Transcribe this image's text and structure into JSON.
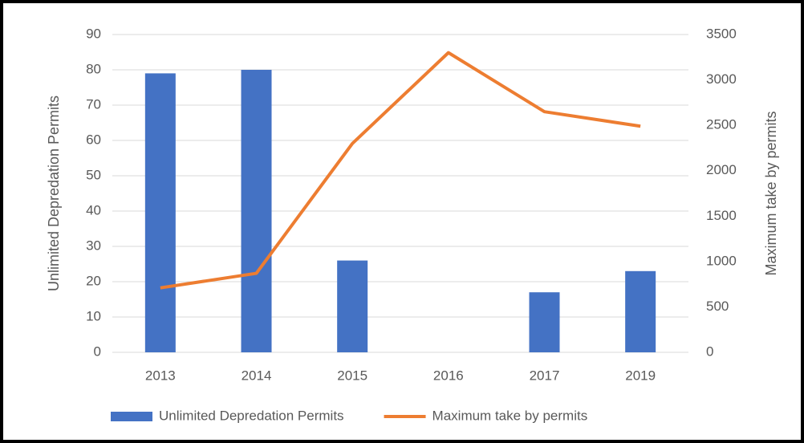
{
  "chart_data": {
    "type": "combo",
    "categories": [
      "2013",
      "2014",
      "2015",
      "2016",
      "2017",
      "2019"
    ],
    "series": [
      {
        "name": "Unlimited Depredation Permits",
        "type": "bar",
        "color": "#4472c4",
        "values": [
          79,
          80,
          26,
          0,
          17,
          23
        ]
      },
      {
        "name": "Maximum take by permits",
        "type": "line",
        "axis": "y2",
        "color": "#ed7d31",
        "values": [
          710,
          870,
          2300,
          3300,
          2650,
          2490
        ]
      }
    ],
    "ylabel": "Unlimited Depredation Permits",
    "y2label": "Maximum take by permits",
    "ylim": [
      0,
      90
    ],
    "yticks": [
      0,
      10,
      20,
      30,
      40,
      50,
      60,
      70,
      80,
      90
    ],
    "y2lim": [
      0,
      3500
    ],
    "y2ticks": [
      0,
      500,
      1000,
      1500,
      2000,
      2500,
      3000,
      3500
    ],
    "grid": true,
    "legend": "bottom"
  }
}
